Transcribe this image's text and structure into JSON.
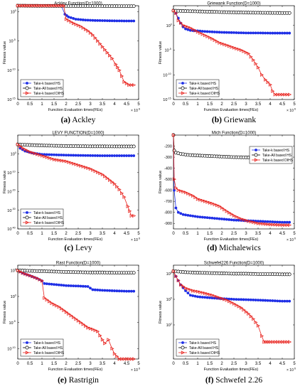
{
  "chart_data": [
    {
      "type": "line",
      "title": "Ackley Function(D=1000)",
      "xlabel": "Function Evaluation times(FEs)",
      "ylabel": "Fitness value",
      "xlim": [
        0,
        5
      ],
      "x_multiplier": "× 10",
      "x_multiplier_exp": "6",
      "yscale": "log",
      "ylim": [
        1e-15,
        10
      ],
      "x_ticks": [
        "0",
        "0.5",
        "1",
        "1.5",
        "2",
        "2.5",
        "3",
        "3.5",
        "4",
        "4.5",
        "5"
      ],
      "y_ticks": [
        {
          "v": 1,
          "base": "10",
          "exp": "0"
        },
        {
          "v": 1e-05,
          "base": "10",
          "exp": "-5"
        },
        {
          "v": 1e-10,
          "base": "10",
          "exp": "-10"
        },
        {
          "v": 1e-15,
          "base": "10",
          "exp": "-15"
        }
      ],
      "legend_position": "bottom-left",
      "caption_letter": "(a)",
      "caption_text": " Ackley",
      "series": [
        {
          "name": "Take-k based HS",
          "color": "#1f2fe6",
          "marker": "circle-filled",
          "x": [
            0,
            0.1,
            0.3,
            0.6,
            1.0,
            1.5,
            1.8,
            1.95,
            2.1,
            2.4,
            2.8,
            3.2,
            3.6,
            4.0,
            4.4,
            4.8
          ],
          "y": [
            10,
            10,
            10,
            10,
            10,
            10,
            10,
            0.35,
            0.12,
            0.05,
            0.035,
            0.03,
            0.028,
            0.026,
            0.025,
            0.025
          ]
        },
        {
          "name": "Take-All based HS",
          "color": "#000000",
          "marker": "circle-open",
          "x": [
            0,
            0.5,
            1.0,
            1.5,
            2.0,
            2.5,
            3.0,
            3.5,
            4.0,
            4.5,
            4.8
          ],
          "y": [
            10,
            9.5,
            9.2,
            9.0,
            8.8,
            8.7,
            8.6,
            8.5,
            8.4,
            8.3,
            8.3
          ]
        },
        {
          "name": "Take-k based DIHS",
          "color": "#e8211c",
          "marker": "triangle-right",
          "x": [
            0,
            0.2,
            0.5,
            1.0,
            1.5,
            1.9,
            2.0,
            2.3,
            2.6,
            2.9,
            3.1,
            3.3,
            3.5,
            3.7,
            3.9,
            4.05,
            4.2,
            4.3,
            4.4,
            4.6,
            4.8
          ],
          "y": [
            10,
            10,
            10,
            10,
            10,
            10,
            0.05,
            0.01,
            0.003,
            0.0005,
            0.0001,
            1e-05,
            1e-06,
            1e-07,
            1e-08,
            1e-09,
            1e-10,
            1e-11,
            1e-12,
            3e-13,
            3e-13
          ]
        }
      ]
    },
    {
      "type": "line",
      "title": "Griewank Function(D=1000)",
      "xlabel": "Function Evaluation times(FEs)",
      "ylabel": "Fitness value",
      "xlim": [
        0,
        5
      ],
      "x_multiplier": "× 10",
      "x_multiplier_exp": "6",
      "yscale": "log",
      "ylim": [
        1e-15,
        10000
      ],
      "x_ticks": [
        "0",
        "0.5",
        "1",
        "1.5",
        "2",
        "2.5",
        "3",
        "3.5",
        "4",
        "4.5",
        "5"
      ],
      "y_ticks": [
        {
          "v": 1,
          "base": "10",
          "exp": "0"
        },
        {
          "v": 1e-05,
          "base": "10",
          "exp": "-5"
        },
        {
          "v": 1e-10,
          "base": "10",
          "exp": "-10"
        },
        {
          "v": 1e-15,
          "base": "10",
          "exp": "-15"
        }
      ],
      "legend_position": "bottom-left",
      "caption_letter": "(b)",
      "caption_text": " Griewank",
      "series": [
        {
          "name": "Take-k based HS",
          "color": "#1f2fe6",
          "marker": "circle-filled",
          "x": [
            0,
            0.1,
            0.2,
            0.3,
            0.4,
            0.5,
            0.7,
            1.0,
            1.3,
            1.6,
            2.0,
            2.5,
            3.0,
            3.5,
            4.0,
            4.5,
            4.8
          ],
          "y": [
            1000,
            300,
            30,
            3,
            0.5,
            0.2,
            0.1,
            0.08,
            0.06,
            0.05,
            0.04,
            0.035,
            0.03,
            0.03,
            0.028,
            0.028,
            0.028
          ]
        },
        {
          "name": "Take-All based HS",
          "color": "#000000",
          "marker": "circle-open",
          "x": [
            0,
            0.5,
            1.0,
            1.5,
            2.0,
            2.5,
            3.0,
            3.5,
            4.0,
            4.5,
            4.8
          ],
          "y": [
            1000,
            800,
            700,
            600,
            500,
            450,
            400,
            370,
            350,
            330,
            330
          ]
        },
        {
          "name": "Take-k based DIHS",
          "color": "#e8211c",
          "marker": "triangle-right",
          "x": [
            0,
            0.1,
            0.2,
            0.4,
            0.7,
            1.0,
            1.3,
            1.6,
            1.9,
            2.2,
            2.5,
            2.8,
            3.1,
            3.3,
            3.5,
            3.65,
            3.8,
            4.0,
            4.1,
            4.2,
            4.5,
            4.8
          ],
          "y": [
            1000,
            300,
            10,
            1,
            0.3,
            0.05,
            0.01,
            0.002,
            0.0003,
            0.0001,
            3e-05,
            1e-05,
            2e-06,
            1e-07,
            3e-09,
            1e-10,
            1e-11,
            1e-12,
            5e-14,
            1e-14,
            1e-14,
            1e-14
          ]
        }
      ]
    },
    {
      "type": "line",
      "title": "LEVY FUNCTION(D=1000)",
      "xlabel": "Function Evaluation times(FEs)",
      "ylabel": "Fitness value",
      "xlim": [
        0,
        5
      ],
      "x_multiplier": "× 10",
      "x_multiplier_exp": "6",
      "yscale": "log",
      "ylim": [
        1e-40,
        10000000000.0
      ],
      "x_ticks": [
        "0",
        "0.5",
        "1",
        "1.5",
        "2",
        "2.5",
        "3",
        "3.5",
        "4",
        "4.5",
        "5"
      ],
      "y_ticks": [
        {
          "v": 1,
          "base": "10",
          "exp": "0"
        },
        {
          "v": 1e-10,
          "base": "10",
          "exp": "-10"
        },
        {
          "v": 1e-20,
          "base": "10",
          "exp": "-20"
        },
        {
          "v": 1e-30,
          "base": "10",
          "exp": "-30"
        },
        {
          "v": 1e-40,
          "base": "10",
          "exp": "-40"
        }
      ],
      "legend_position": "bottom-left",
      "caption_letter": "(c)",
      "caption_text": " Levy",
      "series": [
        {
          "name": "Take-k based HS",
          "color": "#1f2fe6",
          "marker": "circle-filled",
          "x": [
            0,
            0.1,
            0.3,
            0.6,
            1.0,
            1.5,
            2.0,
            2.5,
            3.0,
            3.5,
            4.0,
            4.5,
            4.8
          ],
          "y": [
            100000.0,
            1000.0,
            30,
            3,
            0.5,
            0.3,
            0.2,
            0.15,
            0.12,
            0.1,
            0.1,
            0.1,
            0.1
          ]
        },
        {
          "name": "Take-All based HS",
          "color": "#000000",
          "marker": "circle-open",
          "x": [
            0,
            0.5,
            1.0,
            1.5,
            2.0,
            2.5,
            3.0,
            3.5,
            4.0,
            4.5,
            4.8
          ],
          "y": [
            100000.0,
            50000.0,
            30000.0,
            20000.0,
            15000.0,
            12000.0,
            10000.0,
            10000.0,
            9000.0,
            9000.0,
            9000.0
          ]
        },
        {
          "name": "Take-k based DIHS",
          "color": "#e8211c",
          "marker": "triangle-right",
          "x": [
            0,
            0.2,
            0.5,
            1.0,
            1.5,
            2.0,
            2.5,
            3.0,
            3.5,
            3.8,
            4.0,
            4.2,
            4.4,
            4.55,
            4.7,
            4.8
          ],
          "y": [
            100000.0,
            1000.0,
            10,
            0.1,
            0.001,
            0.0001,
            1e-06,
            1e-08,
            1e-11,
            1e-14,
            1e-16,
            1e-19,
            1e-23,
            1e-28,
            1e-33,
            1e-33
          ]
        }
      ]
    },
    {
      "type": "line",
      "title": "Mich Function(D=1000)",
      "xlabel": "Function Evaluation times(FEs)",
      "ylabel": "Fitness value",
      "xlim": [
        0,
        5
      ],
      "x_multiplier": "× 10",
      "x_multiplier_exp": "6",
      "yscale": "linear",
      "ylim": [
        -950,
        -100
      ],
      "x_ticks": [
        "0",
        "0.5",
        "1",
        "1.5",
        "2",
        "2.5",
        "3",
        "3.5",
        "4",
        "4.5",
        "5"
      ],
      "y_ticks": [
        {
          "v": -200,
          "base": "-200",
          "exp": ""
        },
        {
          "v": -300,
          "base": "-300",
          "exp": ""
        },
        {
          "v": -400,
          "base": "-400",
          "exp": ""
        },
        {
          "v": -500,
          "base": "-500",
          "exp": ""
        },
        {
          "v": -600,
          "base": "-600",
          "exp": ""
        },
        {
          "v": -700,
          "base": "-700",
          "exp": ""
        },
        {
          "v": -800,
          "base": "-800",
          "exp": ""
        },
        {
          "v": -900,
          "base": "-900",
          "exp": ""
        }
      ],
      "legend_position": "top-right",
      "caption_letter": "(d)",
      "caption_text": " Michalewics",
      "series": [
        {
          "name": "Take-k based HS",
          "color": "#1f2fe6",
          "marker": "circle-filled",
          "x": [
            0,
            0.03,
            0.1,
            0.2,
            0.4,
            0.7,
            1.0,
            1.5,
            2.0,
            2.5,
            3.0,
            3.5,
            4.0,
            4.5,
            4.8
          ],
          "y": [
            -100,
            -600,
            -760,
            -800,
            -820,
            -830,
            -840,
            -850,
            -860,
            -870,
            -875,
            -880,
            -885,
            -890,
            -890
          ]
        },
        {
          "name": "Take-All based HS",
          "color": "#000000",
          "marker": "circle-open",
          "x": [
            0,
            0.03,
            0.1,
            0.3,
            0.6,
            1.0,
            1.5,
            2.0,
            2.5,
            3.0,
            3.5,
            4.0,
            4.5,
            4.8
          ],
          "y": [
            -100,
            -240,
            -260,
            -270,
            -280,
            -285,
            -290,
            -295,
            -300,
            -302,
            -305,
            -307,
            -310,
            -310
          ]
        },
        {
          "name": "Take-k based DIHS",
          "color": "#e8211c",
          "marker": "triangle-right",
          "x": [
            0,
            0.03,
            0.1,
            0.2,
            0.5,
            0.8,
            1.0,
            1.3,
            1.6,
            1.9,
            2.2,
            2.5,
            2.8,
            3.1,
            3.5,
            4.0,
            4.5,
            4.8
          ],
          "y": [
            -100,
            -500,
            -580,
            -600,
            -620,
            -650,
            -680,
            -700,
            -720,
            -745,
            -790,
            -830,
            -860,
            -880,
            -900,
            -910,
            -915,
            -915
          ]
        }
      ]
    },
    {
      "type": "line",
      "title": "Rast Function(D=1000)",
      "xlabel": "Function Evaluation times(FEs)",
      "ylabel": "Fitness value",
      "xlim": [
        0,
        5
      ],
      "x_multiplier": "× 10",
      "x_multiplier_exp": "6",
      "yscale": "log",
      "ylim": [
        1e-12,
        1000000.0
      ],
      "x_ticks": [
        "0",
        "0.5",
        "1",
        "1.5",
        "2",
        "2.5",
        "3",
        "3.5",
        "4",
        "4.5",
        "5"
      ],
      "y_ticks": [
        {
          "v": 100000.0,
          "base": "10",
          "exp": "5"
        },
        {
          "v": 1,
          "base": "10",
          "exp": "0"
        },
        {
          "v": 1e-05,
          "base": "10",
          "exp": "-5"
        },
        {
          "v": 1e-10,
          "base": "10",
          "exp": "-10"
        }
      ],
      "legend_position": "bottom-left",
      "caption_letter": "(e)",
      "caption_text": " Rastrigin",
      "series": [
        {
          "name": "Take-k based HS",
          "color": "#1f2fe6",
          "marker": "circle-filled",
          "x": [
            0,
            0.2,
            0.5,
            0.8,
            1.0,
            1.1,
            1.5,
            1.8,
            2.0,
            2.5,
            2.9,
            3.1,
            3.5,
            4.0,
            4.5,
            4.8
          ],
          "y": [
            100000.0,
            30000.0,
            10000.0,
            3000.0,
            1000.0,
            300,
            200,
            150,
            120,
            100,
            80,
            20,
            15,
            12,
            10,
            10
          ]
        },
        {
          "name": "Take-All based HS",
          "color": "#000000",
          "marker": "circle-open",
          "x": [
            0,
            0.5,
            1.0,
            1.5,
            2.0,
            2.5,
            3.0,
            3.5,
            4.0,
            4.5,
            4.8
          ],
          "y": [
            100000.0,
            80000.0,
            70000.0,
            60000.0,
            50000.0,
            45000.0,
            40000.0,
            40000.0,
            35000.0,
            35000.0,
            35000.0
          ]
        },
        {
          "name": "Take-k based DIHS",
          "color": "#e8211c",
          "marker": "triangle-right",
          "x": [
            0,
            0.2,
            0.5,
            0.8,
            1.0,
            1.1,
            1.4,
            1.7,
            2.0,
            2.3,
            2.6,
            2.9,
            3.1,
            3.3,
            3.5,
            3.6,
            3.75,
            3.9,
            4.0,
            4.2,
            4.5,
            4.8
          ],
          "y": [
            100000.0,
            30000.0,
            10000.0,
            3000.0,
            1000.0,
            0.5,
            0.05,
            0.01,
            0.001,
            0.0001,
            1e-05,
            1e-06,
            5e-07,
            2e-07,
            5e-09,
            1e-09,
            5e-09,
            1e-10,
            1e-11,
            1e-12,
            1e-12,
            1e-12
          ]
        }
      ]
    },
    {
      "type": "line",
      "title": "Schwefel226 Function(D=1000)",
      "xlabel": "Function Evaluation times(FEs)",
      "ylabel": "Fitness value",
      "xlim": [
        0,
        5
      ],
      "x_multiplier": "× 10",
      "x_multiplier_exp": "6",
      "yscale": "log",
      "ylim": [
        0.01,
        1000000000.0
      ],
      "x_ticks": [
        "0",
        "0.5",
        "1",
        "1.5",
        "2",
        "2.5",
        "3",
        "3.5",
        "4",
        "4.5",
        "5"
      ],
      "y_ticks": [
        {
          "v": 100000000.0,
          "base": "10",
          "exp": "8"
        },
        {
          "v": 100000.0,
          "base": "10",
          "exp": "5"
        },
        {
          "v": 100,
          "base": "10",
          "exp": "2"
        }
      ],
      "legend_position": "bottom-left",
      "caption_letter": "(f)",
      "caption_text": " Schwefel 2.26",
      "series": [
        {
          "name": "Take-k based HS",
          "color": "#1f2fe6",
          "marker": "circle-filled",
          "x": [
            0,
            0.1,
            0.3,
            0.5,
            0.7,
            1.0,
            1.5,
            2.0,
            2.5,
            3.0,
            3.5,
            4.0,
            4.5,
            4.8
          ],
          "y": [
            200000000.0,
            50000000.0,
            5000000.0,
            1000000.0,
            300000.0,
            200000.0,
            150000.0,
            120000.0,
            100000.0,
            90000.0,
            80000.0,
            70000.0,
            60000.0,
            60000.0
          ]
        },
        {
          "name": "Take-All based HS",
          "color": "#000000",
          "marker": "circle-open",
          "x": [
            0,
            0.5,
            1.0,
            1.5,
            2.0,
            2.5,
            3.0,
            3.5,
            4.0,
            4.5,
            4.8
          ],
          "y": [
            200000000.0,
            150000000.0,
            130000000.0,
            120000000.0,
            110000000.0,
            100000000.0,
            100000000.0,
            90000000.0,
            90000000.0,
            85000000.0,
            85000000.0
          ]
        },
        {
          "name": "Take-k based DIHS",
          "color": "#e8211c",
          "marker": "triangle-right",
          "x": [
            0,
            0.1,
            0.3,
            0.5,
            0.8,
            1.0,
            1.3,
            1.6,
            1.9,
            2.2,
            2.5,
            2.8,
            3.1,
            3.3,
            3.5,
            3.65,
            3.75,
            4.0,
            4.5,
            4.8
          ],
          "y": [
            200000000.0,
            50000000.0,
            5000000.0,
            2000000.0,
            1000000.0,
            800000.0,
            500000.0,
            300000.0,
            150000.0,
            80000.0,
            30000.0,
            10000.0,
            2000.0,
            500,
            80,
            5,
            1,
            1,
            1,
            1
          ]
        }
      ]
    }
  ]
}
